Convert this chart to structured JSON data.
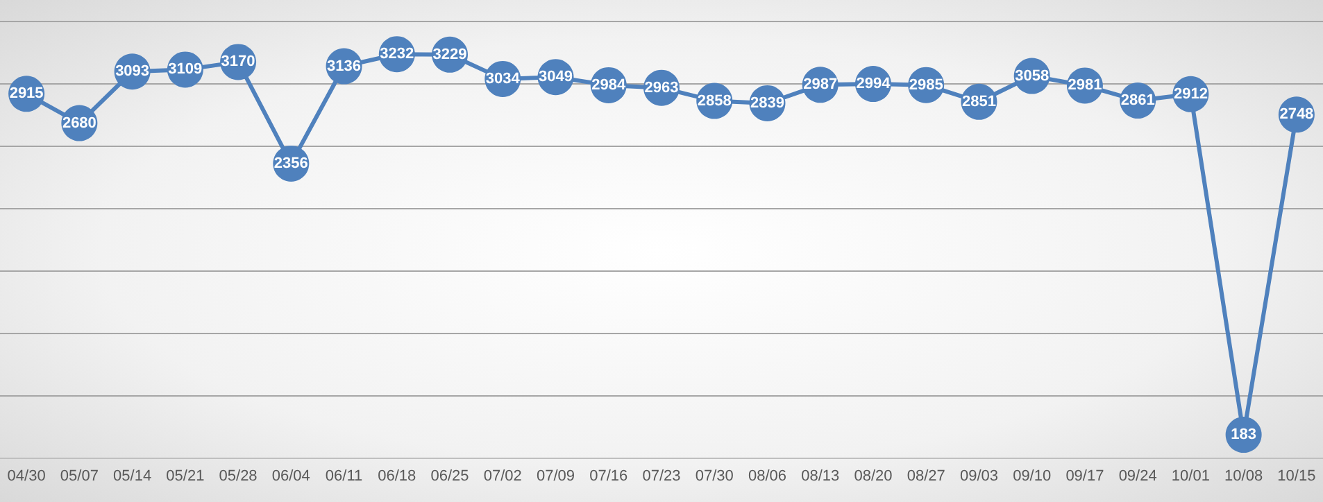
{
  "chart_data": {
    "type": "line",
    "categories": [
      "04/30",
      "05/07",
      "05/14",
      "05/21",
      "05/28",
      "06/04",
      "06/11",
      "06/18",
      "06/25",
      "07/02",
      "07/09",
      "07/16",
      "07/23",
      "07/30",
      "08/06",
      "08/13",
      "08/20",
      "08/27",
      "09/03",
      "09/10",
      "09/17",
      "09/24",
      "10/01",
      "10/08",
      "10/15"
    ],
    "series": [
      {
        "color": "#4f81bd",
        "values": [
          2915,
          2680,
          3093,
          3109,
          3170,
          2356,
          3136,
          3232,
          3229,
          3034,
          3049,
          2984,
          2963,
          2858,
          2839,
          2987,
          2994,
          2985,
          2851,
          3058,
          2981,
          2861,
          2912,
          183,
          2748
        ]
      }
    ],
    "ylim": [
      0,
      3500
    ],
    "yticks": [
      0,
      500,
      1000,
      1500,
      2000,
      2500,
      3000,
      3500
    ],
    "tick_labels": "x",
    "grid": "y",
    "marker": "circle",
    "line_style": "solid",
    "data_labels": true
  }
}
